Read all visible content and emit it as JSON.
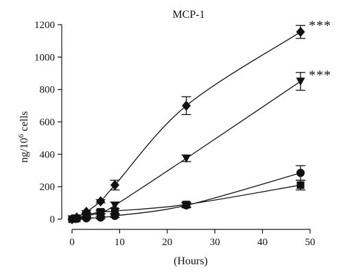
{
  "chart_data": {
    "type": "line",
    "title": "MCP-1",
    "xlabel": "(Hours)",
    "ylabel": "ng/10",
    "ylabel_sup": "6",
    "ylabel_suffix": " cells",
    "xlim": [
      0,
      50
    ],
    "ylim": [
      0,
      1200
    ],
    "x_ticks": [
      0,
      10,
      20,
      30,
      40,
      50
    ],
    "y_ticks": [
      0,
      200,
      400,
      600,
      800,
      1000,
      1200
    ],
    "grid": false,
    "x": [
      0,
      1,
      3,
      6,
      9,
      24,
      48
    ],
    "series": [
      {
        "marker": "diamond",
        "values": [
          0,
          10,
          45,
          110,
          210,
          700,
          1155
        ],
        "errors": [
          0,
          5,
          8,
          10,
          30,
          55,
          40
        ],
        "annotation": "***"
      },
      {
        "marker": "triangle-down",
        "values": [
          0,
          5,
          20,
          40,
          85,
          375,
          850
        ],
        "errors": [
          0,
          5,
          8,
          10,
          20,
          20,
          55
        ],
        "annotation": "***"
      },
      {
        "marker": "circle",
        "values": [
          0,
          2,
          5,
          10,
          20,
          85,
          285
        ],
        "errors": [
          0,
          3,
          5,
          8,
          10,
          15,
          45
        ]
      },
      {
        "marker": "square",
        "values": [
          0,
          5,
          25,
          45,
          50,
          90,
          210
        ],
        "errors": [
          0,
          5,
          8,
          10,
          15,
          15,
          30
        ]
      }
    ]
  }
}
